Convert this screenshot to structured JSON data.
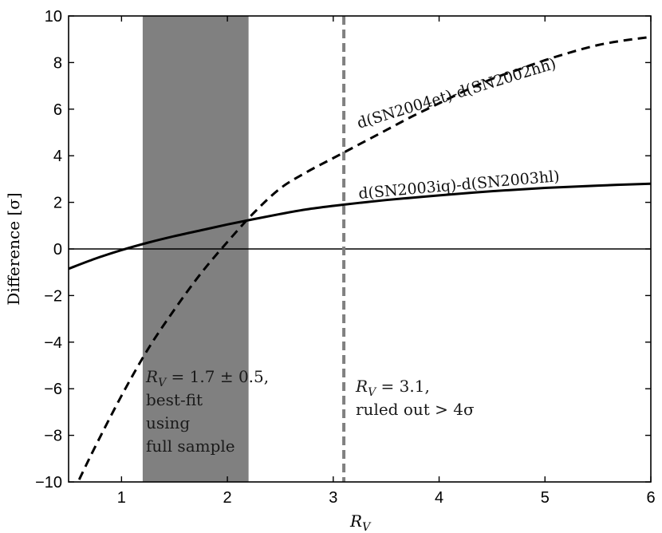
{
  "chart_data": {
    "type": "line",
    "xlabel": "R_V",
    "ylabel": "Difference [σ]",
    "xlim": [
      0.5,
      6
    ],
    "ylim": [
      -10,
      10
    ],
    "xticks": [
      1,
      2,
      3,
      4,
      5,
      6
    ],
    "yticks": [
      -10,
      -8,
      -6,
      -4,
      -2,
      0,
      2,
      4,
      6,
      8,
      10
    ],
    "grid": false,
    "legend": "none",
    "series": [
      {
        "name": "d(SN2003iq)-d(SN2003hl)",
        "style": "solid",
        "color": "#000000",
        "x": [
          0.5,
          0.75,
          1.0,
          1.25,
          1.5,
          1.75,
          2.0,
          2.25,
          2.5,
          2.75,
          3.0,
          3.25,
          3.5,
          3.75,
          4.0,
          4.5,
          5.0,
          5.5,
          6.0
        ],
        "y": [
          -0.85,
          -0.42,
          -0.05,
          0.27,
          0.55,
          0.8,
          1.05,
          1.28,
          1.5,
          1.7,
          1.85,
          1.98,
          2.1,
          2.2,
          2.3,
          2.48,
          2.62,
          2.72,
          2.8
        ]
      },
      {
        "name": "d(SN2004et)-d(SN2002hh)",
        "style": "dashed",
        "color": "#000000",
        "x": [
          0.6,
          0.75,
          1.0,
          1.25,
          1.5,
          1.75,
          2.0,
          2.25,
          2.5,
          2.75,
          3.0,
          3.25,
          3.5,
          3.75,
          4.0,
          4.25,
          4.5,
          4.75,
          5.0,
          5.25,
          5.5,
          5.75,
          6.0
        ],
        "y": [
          -9.9,
          -8.5,
          -6.3,
          -4.3,
          -2.6,
          -1.05,
          0.3,
          1.55,
          2.6,
          3.3,
          3.9,
          4.5,
          5.1,
          5.7,
          6.25,
          6.8,
          7.3,
          7.7,
          8.1,
          8.45,
          8.75,
          8.95,
          9.1
        ]
      }
    ],
    "shaded_region": {
      "x": [
        1.2,
        2.2
      ],
      "color": "#808080"
    },
    "vline": {
      "x": 3.1,
      "style": "dashed",
      "color": "#808080"
    },
    "hline": {
      "y": 0,
      "color": "#000000"
    },
    "annotations": {
      "best_fit": [
        "R_V = 1.7 ± 0.5,",
        "best-fit",
        "using",
        "full sample"
      ],
      "ruled_out": [
        "R_V = 3.1,",
        "ruled out > 4σ"
      ]
    }
  }
}
